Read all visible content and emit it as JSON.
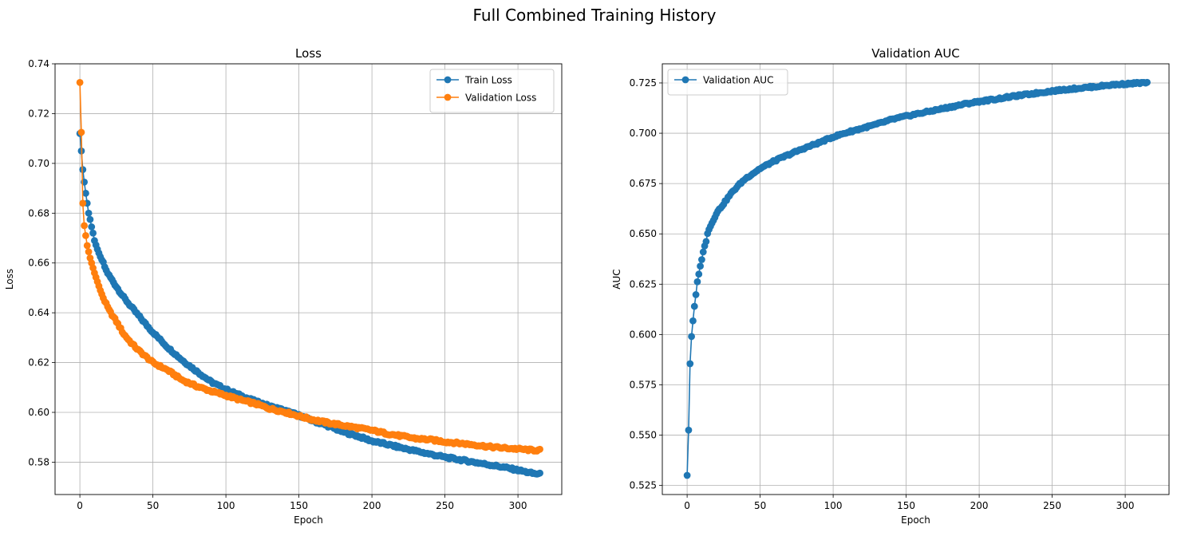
{
  "figure": {
    "suptitle": "Full Combined Training History"
  },
  "chart_data": [
    {
      "type": "line",
      "title": "Loss",
      "xlabel": "Epoch",
      "ylabel": "Loss",
      "xlim": [
        -17,
        330
      ],
      "ylim": [
        0.567,
        0.74
      ],
      "xticks": [
        0,
        50,
        100,
        150,
        200,
        250,
        300
      ],
      "yticks": [
        0.58,
        0.6,
        0.62,
        0.64,
        0.66,
        0.68,
        0.7,
        0.72,
        0.74
      ],
      "ytick_labels": [
        "0.58",
        "0.60",
        "0.62",
        "0.64",
        "0.66",
        "0.68",
        "0.70",
        "0.72",
        "0.74"
      ],
      "grid": true,
      "legend_position": "upper right",
      "markers": "circle",
      "series": [
        {
          "name": "Train Loss",
          "color": "#1f77b4",
          "x_range": [
            0,
            315
          ],
          "keypoints": [
            [
              0,
              0.712
            ],
            [
              1,
              0.705
            ],
            [
              2,
              0.6975
            ],
            [
              3,
              0.6925
            ],
            [
              4,
              0.688
            ],
            [
              5,
              0.684
            ],
            [
              6,
              0.68
            ],
            [
              7,
              0.6775
            ],
            [
              8,
              0.6745
            ],
            [
              9,
              0.672
            ],
            [
              10,
              0.669
            ],
            [
              12,
              0.6655
            ],
            [
              14,
              0.6625
            ],
            [
              16,
              0.66
            ],
            [
              18,
              0.657
            ],
            [
              20,
              0.655
            ],
            [
              25,
              0.6505
            ],
            [
              30,
              0.6462
            ],
            [
              35,
              0.6425
            ],
            [
              40,
              0.639
            ],
            [
              45,
              0.6355
            ],
            [
              50,
              0.6322
            ],
            [
              60,
              0.6262
            ],
            [
              70,
              0.621
            ],
            [
              80,
              0.6165
            ],
            [
              90,
              0.6122
            ],
            [
              100,
              0.6092
            ],
            [
              110,
              0.6068
            ],
            [
              120,
              0.6045
            ],
            [
              130,
              0.6025
            ],
            [
              140,
              0.6008
            ],
            [
              150,
              0.5988
            ],
            [
              160,
              0.5965
            ],
            [
              170,
              0.5945
            ],
            [
              180,
              0.5922
            ],
            [
              190,
              0.5905
            ],
            [
              200,
              0.5885
            ],
            [
              210,
              0.5872
            ],
            [
              220,
              0.5858
            ],
            [
              230,
              0.5845
            ],
            [
              240,
              0.5832
            ],
            [
              250,
              0.582
            ],
            [
              260,
              0.581
            ],
            [
              270,
              0.58
            ],
            [
              280,
              0.579
            ],
            [
              290,
              0.578
            ],
            [
              300,
              0.5768
            ],
            [
              310,
              0.5755
            ],
            [
              315,
              0.5752
            ]
          ]
        },
        {
          "name": "Validation Loss",
          "color": "#ff7f0e",
          "x_range": [
            0,
            315
          ],
          "keypoints": [
            [
              0,
              0.7325
            ],
            [
              1,
              0.7125
            ],
            [
              2,
              0.684
            ],
            [
              3,
              0.675
            ],
            [
              4,
              0.671
            ],
            [
              5,
              0.667
            ],
            [
              6,
              0.6645
            ],
            [
              7,
              0.662
            ],
            [
              8,
              0.66
            ],
            [
              9,
              0.658
            ],
            [
              10,
              0.656
            ],
            [
              12,
              0.6525
            ],
            [
              14,
              0.649
            ],
            [
              16,
              0.646
            ],
            [
              18,
              0.6435
            ],
            [
              20,
              0.641
            ],
            [
              25,
              0.6365
            ],
            [
              30,
              0.6315
            ],
            [
              35,
              0.628
            ],
            [
              40,
              0.625
            ],
            [
              45,
              0.6225
            ],
            [
              50,
              0.62
            ],
            [
              60,
              0.617
            ],
            [
              70,
              0.613
            ],
            [
              80,
              0.6105
            ],
            [
              90,
              0.6085
            ],
            [
              100,
              0.6068
            ],
            [
              110,
              0.605
            ],
            [
              120,
              0.6035
            ],
            [
              130,
              0.6015
            ],
            [
              140,
              0.6002
            ],
            [
              150,
              0.5985
            ],
            [
              160,
              0.597
            ],
            [
              170,
              0.5958
            ],
            [
              180,
              0.5948
            ],
            [
              190,
              0.5938
            ],
            [
              200,
              0.5928
            ],
            [
              210,
              0.5915
            ],
            [
              220,
              0.5905
            ],
            [
              230,
              0.5895
            ],
            [
              240,
              0.589
            ],
            [
              250,
              0.5882
            ],
            [
              260,
              0.5876
            ],
            [
              270,
              0.587
            ],
            [
              280,
              0.5862
            ],
            [
              290,
              0.5857
            ],
            [
              300,
              0.5853
            ],
            [
              310,
              0.5848
            ],
            [
              315,
              0.5848
            ]
          ]
        }
      ]
    },
    {
      "type": "line",
      "title": "Validation AUC",
      "xlabel": "Epoch",
      "ylabel": "AUC",
      "xlim": [
        -17,
        330
      ],
      "ylim": [
        0.5205,
        0.7345
      ],
      "xticks": [
        0,
        50,
        100,
        150,
        200,
        250,
        300
      ],
      "yticks": [
        0.525,
        0.55,
        0.575,
        0.6,
        0.625,
        0.65,
        0.675,
        0.7,
        0.725
      ],
      "ytick_labels": [
        "0.525",
        "0.550",
        "0.575",
        "0.600",
        "0.625",
        "0.650",
        "0.675",
        "0.700",
        "0.725"
      ],
      "grid": true,
      "legend_position": "upper left",
      "markers": "circle",
      "series": [
        {
          "name": "Validation AUC",
          "color": "#1f77b4",
          "x_range": [
            0,
            315
          ],
          "keypoints": [
            [
              0,
              0.53
            ],
            [
              1,
              0.5525
            ],
            [
              2,
              0.5855
            ],
            [
              3,
              0.599
            ],
            [
              4,
              0.6068
            ],
            [
              5,
              0.614
            ],
            [
              6,
              0.6198
            ],
            [
              7,
              0.6262
            ],
            [
              8,
              0.63
            ],
            [
              9,
              0.634
            ],
            [
              10,
              0.6372
            ],
            [
              11,
              0.641
            ],
            [
              12,
              0.644
            ],
            [
              13,
              0.6462
            ],
            [
              14,
              0.6502
            ],
            [
              15,
              0.6522
            ],
            [
              20,
              0.6602
            ],
            [
              25,
              0.665
            ],
            [
              30,
              0.67
            ],
            [
              35,
              0.674
            ],
            [
              40,
              0.6775
            ],
            [
              45,
              0.68
            ],
            [
              50,
              0.6825
            ],
            [
              60,
              0.6863
            ],
            [
              70,
              0.6895
            ],
            [
              80,
              0.6925
            ],
            [
              90,
              0.6952
            ],
            [
              100,
              0.6982
            ],
            [
              110,
              0.7005
            ],
            [
              120,
              0.7025
            ],
            [
              130,
              0.7045
            ],
            [
              140,
              0.7068
            ],
            [
              150,
              0.7085
            ],
            [
              160,
              0.71
            ],
            [
              170,
              0.7115
            ],
            [
              180,
              0.713
            ],
            [
              190,
              0.7145
            ],
            [
              200,
              0.7158
            ],
            [
              210,
              0.7168
            ],
            [
              220,
              0.718
            ],
            [
              230,
              0.719
            ],
            [
              240,
              0.72
            ],
            [
              250,
              0.721
            ],
            [
              260,
              0.7218
            ],
            [
              270,
              0.7225
            ],
            [
              280,
              0.7232
            ],
            [
              290,
              0.724
            ],
            [
              300,
              0.7245
            ],
            [
              310,
              0.725
            ],
            [
              315,
              0.725
            ]
          ]
        }
      ]
    }
  ]
}
